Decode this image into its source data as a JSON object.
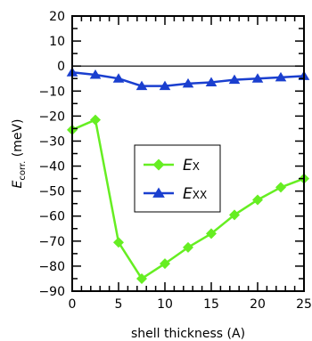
{
  "chart_data": {
    "type": "line",
    "xlabel": "shell thickness (A)",
    "ylabel_main": "E",
    "ylabel_sub": "corr.",
    "ylabel_unit": " (meV)",
    "xlim": [
      0,
      25
    ],
    "ylim": [
      -90,
      20
    ],
    "x_ticks": [
      0,
      5,
      10,
      15,
      20,
      25
    ],
    "y_ticks": [
      20,
      10,
      0,
      -10,
      -20,
      -30,
      -40,
      -50,
      -60,
      -70,
      -80,
      -90
    ],
    "zero_line": true,
    "grid": false,
    "legend_position": "center-right",
    "series": [
      {
        "key": "ex",
        "name_main": "E",
        "name_sub": "X",
        "marker": "diamond",
        "color": "#66ee22",
        "x": [
          0,
          2.5,
          5,
          7.5,
          10,
          12.5,
          15,
          17.5,
          20,
          22.5,
          25
        ],
        "y": [
          -25.5,
          -21.5,
          -70.5,
          -85,
          -79,
          -72.5,
          -67,
          -59.5,
          -53.5,
          -48.5,
          -45
        ]
      },
      {
        "key": "exx",
        "name_main": "E",
        "name_sub": "XX",
        "marker": "triangle",
        "color": "#1a3fcf",
        "x": [
          0,
          2.5,
          5,
          7.5,
          10,
          12.5,
          15,
          17.5,
          20,
          22.5,
          25
        ],
        "y": [
          -2.5,
          -3.5,
          -5,
          -8,
          -8,
          -7,
          -6.5,
          -5.5,
          -5,
          -4.5,
          -4
        ]
      }
    ]
  }
}
